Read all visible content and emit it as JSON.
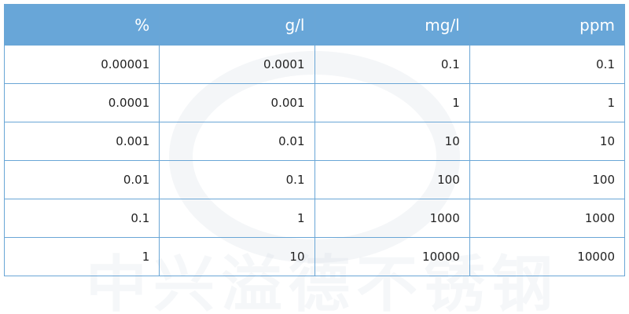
{
  "table": {
    "header": [
      "%",
      "g/l",
      "mg/l",
      "ppm"
    ],
    "rows": [
      [
        "0.00001",
        "0.0001",
        "0.1",
        "0.1"
      ],
      [
        "0.0001",
        "0.001",
        "1",
        "1"
      ],
      [
        "0.001",
        "0.01",
        "10",
        "10"
      ],
      [
        "0.01",
        "0.1",
        "100",
        "100"
      ],
      [
        "0.1",
        "1",
        "1000",
        "1000"
      ],
      [
        "1",
        "10",
        "10000",
        "10000"
      ]
    ]
  },
  "watermark": "中兴溢德不锈钢"
}
